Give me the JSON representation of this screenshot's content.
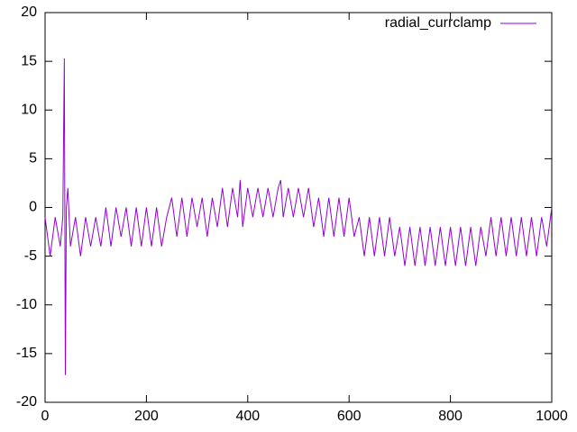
{
  "chart_data": {
    "type": "line",
    "x": [
      0,
      10,
      20,
      30,
      35,
      38,
      40,
      42,
      45,
      50,
      60,
      70,
      80,
      90,
      100,
      110,
      120,
      130,
      140,
      150,
      160,
      170,
      180,
      190,
      200,
      210,
      220,
      230,
      240,
      250,
      260,
      270,
      280,
      290,
      300,
      310,
      320,
      330,
      340,
      350,
      360,
      370,
      380,
      385,
      390,
      400,
      410,
      420,
      430,
      440,
      450,
      460,
      465,
      470,
      480,
      490,
      500,
      510,
      520,
      530,
      540,
      550,
      560,
      570,
      580,
      590,
      600,
      610,
      620,
      630,
      640,
      650,
      660,
      670,
      680,
      690,
      700,
      710,
      720,
      730,
      740,
      750,
      760,
      770,
      780,
      790,
      800,
      810,
      820,
      830,
      840,
      850,
      860,
      870,
      880,
      890,
      900,
      910,
      920,
      930,
      940,
      950,
      960,
      970,
      980,
      990,
      1000
    ],
    "series": [
      {
        "name": "radial_currclamp",
        "color": "#9400d3",
        "values": [
          -1,
          -5,
          -1,
          -4,
          -1,
          15.3,
          -17.2,
          0,
          2,
          -4,
          -1,
          -5,
          -1,
          -4,
          -1,
          -4,
          0,
          -4,
          0,
          -3,
          0,
          -4,
          0,
          -4,
          0,
          -4,
          0,
          -4,
          -1,
          1,
          -3,
          1,
          -3,
          1,
          -2,
          1,
          -3,
          1,
          -2,
          2,
          -2,
          2,
          -1,
          2.8,
          -2,
          2,
          -1,
          2,
          -1,
          2,
          -1,
          2,
          2.8,
          -1,
          2,
          -1,
          2,
          -1,
          2,
          -2,
          1,
          -3,
          1,
          -3,
          1,
          -3,
          1,
          -3,
          -1,
          -5,
          -1,
          -5,
          -1,
          -5,
          -1,
          -5,
          -2,
          -6,
          -2,
          -6,
          -2,
          -6,
          -2,
          -6,
          -2,
          -6,
          -2,
          -6,
          -2,
          -6,
          -2,
          -6,
          -2,
          -5,
          -1,
          -5,
          -1,
          -5,
          -1,
          -5,
          -1,
          -5,
          -1,
          -5,
          -1,
          -4,
          0
        ]
      }
    ],
    "xlim": [
      0,
      1000
    ],
    "xticks": [
      0,
      200,
      400,
      600,
      800,
      1000
    ],
    "ylim": [
      -20,
      20
    ],
    "yticks": [
      -20,
      -15,
      -10,
      -5,
      0,
      5,
      10,
      15,
      20
    ],
    "grid": false,
    "legend": "top-right"
  }
}
